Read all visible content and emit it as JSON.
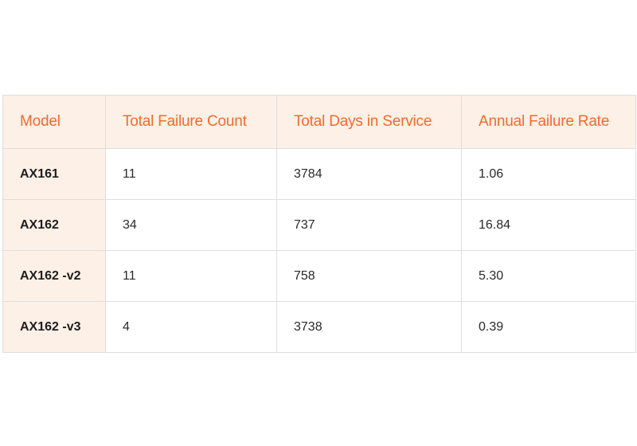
{
  "table": {
    "headers": [
      "Model",
      "Total Failure Count",
      "Total Days in Service",
      "Annual Failure Rate"
    ],
    "rows": [
      {
        "model": "AX161",
        "failures": "11",
        "days": "3784",
        "afr": "1.06"
      },
      {
        "model": "AX162",
        "failures": "34",
        "days": "737",
        "afr": "16.84"
      },
      {
        "model": "AX162 -v2",
        "failures": "11",
        "days": "758",
        "afr": "5.30"
      },
      {
        "model": "AX162 -v3",
        "failures": "4",
        "days": "3738",
        "afr": "0.39"
      }
    ]
  },
  "colors": {
    "header_text": "#f26b2a",
    "header_bg": "#fdf0e7",
    "border": "#dedede"
  }
}
